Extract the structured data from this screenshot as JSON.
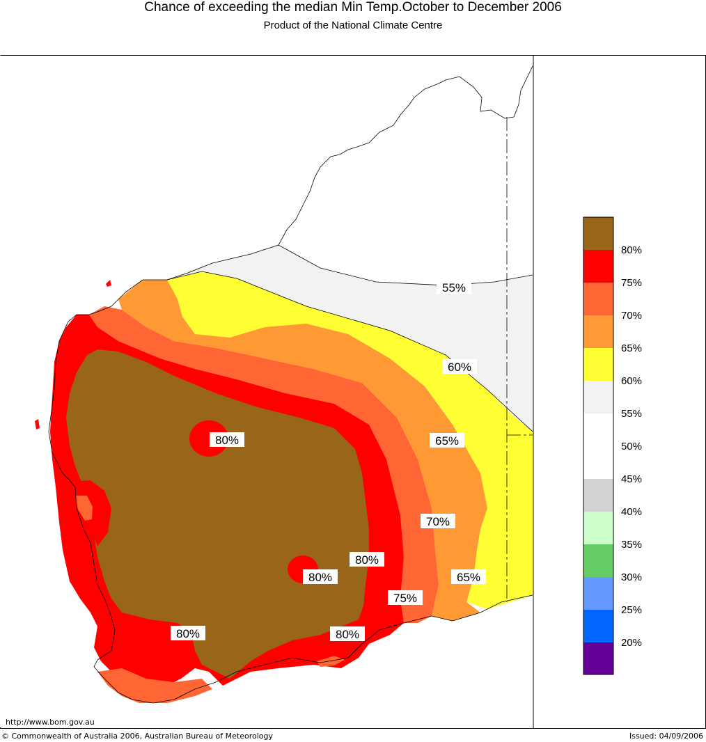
{
  "header": {
    "title": "Chance of exceeding the median Min Temp.October to December 2006",
    "subtitle": "Product of the National Climate Centre"
  },
  "colors": {
    "band_80_plus": "#996619",
    "band_75_80": "#ff0000",
    "band_70_75": "#ff6633",
    "band_65_70": "#ff9933",
    "band_60_65": "#ffff33",
    "band_55_60": "#f2f2f2",
    "band_50_55": "#ffffff",
    "band_45_50": "#ffffff",
    "band_40_45": "#d3d3d3",
    "band_35_40": "#ccffcc",
    "band_30_35": "#66cc66",
    "band_25_30": "#6699ff",
    "band_20_25": "#0066ff",
    "band_below_20": "#660099"
  },
  "legend": {
    "labels": [
      "80%",
      "75%",
      "70%",
      "65%",
      "60%",
      "55%",
      "50%",
      "45%",
      "40%",
      "35%",
      "30%",
      "25%",
      "20%"
    ]
  },
  "contour_labels": [
    "55%",
    "60%",
    "65%",
    "80%",
    "70%",
    "80%",
    "65%",
    "80%",
    "75%",
    "80%",
    "80%"
  ],
  "footer": {
    "url": "http://www.bom.gov.au",
    "copyright": "© Commonwealth of Australia 2006, Australian Bureau of Meteorology",
    "issued": "Issued: 04/09/2006"
  }
}
